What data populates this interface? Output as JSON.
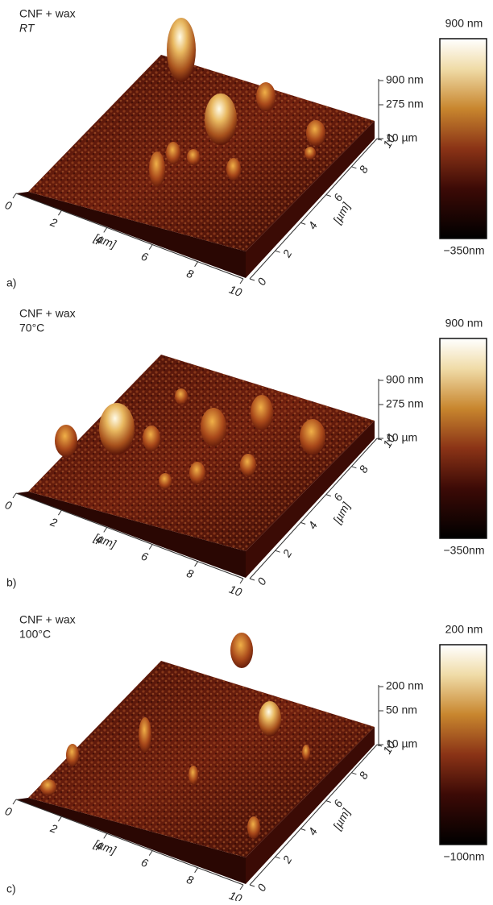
{
  "panels": [
    {
      "label": "a)",
      "title": "CNF + wax",
      "condition": "RT",
      "z_labels": [
        "900 nm",
        "275 nm",
        "10 µm"
      ],
      "x_ticks": [
        "0",
        "2",
        "4",
        "6",
        "8",
        "10"
      ],
      "x_unit": "[µm]",
      "y_ticks": [
        "0",
        "2",
        "4",
        "6",
        "8",
        "10"
      ],
      "y_unit": "[µm]",
      "colorbar": {
        "max": "900 nm",
        "min": "−350nm"
      }
    },
    {
      "label": "b)",
      "title": "CNF + wax",
      "condition": "70°C",
      "z_labels": [
        "900 nm",
        "275 nm",
        "10 µm"
      ],
      "x_ticks": [
        "0",
        "2",
        "4",
        "6",
        "8",
        "10"
      ],
      "x_unit": "[µm]",
      "y_ticks": [
        "0",
        "2",
        "4",
        "6",
        "8",
        "10"
      ],
      "y_unit": "[µm]",
      "colorbar": {
        "max": "900 nm",
        "min": "−350nm"
      }
    },
    {
      "label": "c)",
      "title": "CNF + wax",
      "condition": "100°C",
      "z_labels": [
        "200 nm",
        "50 nm",
        "10 µm"
      ],
      "x_ticks": [
        "0",
        "2",
        "4",
        "6",
        "8",
        "10"
      ],
      "x_unit": "[µm]",
      "y_ticks": [
        "0",
        "2",
        "4",
        "6",
        "8",
        "10"
      ],
      "y_unit": "[µm]",
      "colorbar": {
        "max": "200 nm",
        "min": "−100nm"
      }
    }
  ]
}
